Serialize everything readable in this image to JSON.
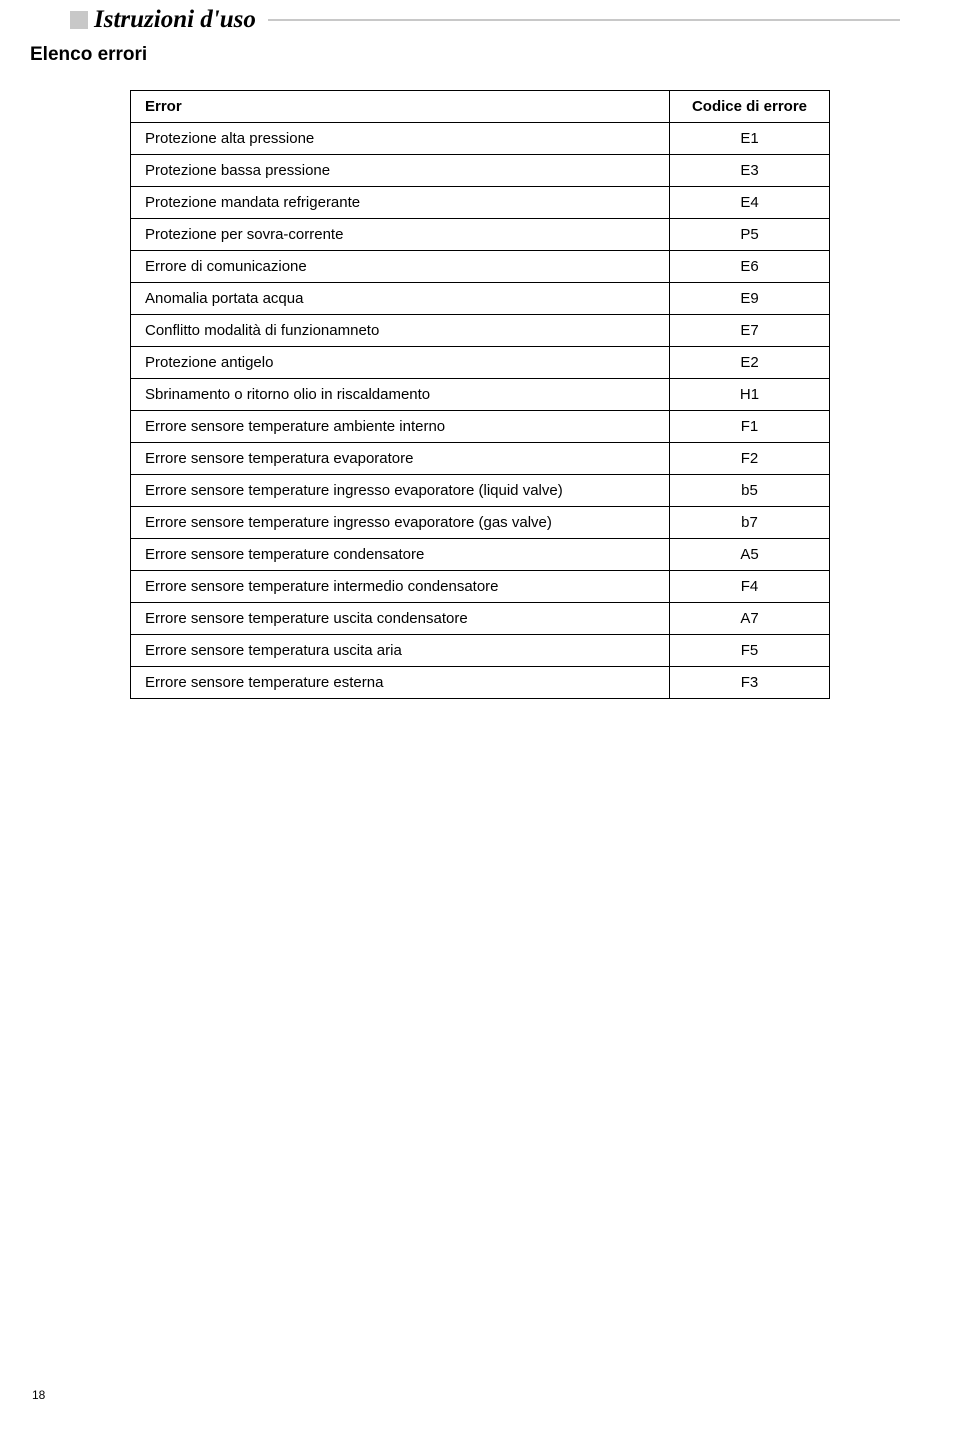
{
  "section_title": "Istruzioni d'uso",
  "sub_heading": "Elenco errori",
  "page_number": "18",
  "table": {
    "header": {
      "error": "Error",
      "code": "Codice di errore"
    },
    "rows": [
      {
        "error": "Protezione alta pressione",
        "code": "E1"
      },
      {
        "error": "Protezione bassa pressione",
        "code": "E3"
      },
      {
        "error": "Protezione  mandata refrigerante",
        "code": "E4"
      },
      {
        "error": "Protezione per sovra-corrente",
        "code": "P5"
      },
      {
        "error": "Errore di comunicazione",
        "code": "E6"
      },
      {
        "error": "Anomalia portata acqua",
        "code": "E9"
      },
      {
        "error": "Conflitto modalità di funzionamneto",
        "code": "E7"
      },
      {
        "error": "Protezione antigelo",
        "code": "E2"
      },
      {
        "error": "Sbrinamento o ritorno olio in riscaldamento",
        "code": "H1"
      },
      {
        "error": "Errore sensore temperature ambiente interno",
        "code": "F1"
      },
      {
        "error": "Errore sensore temperatura evaporatore",
        "code": "F2"
      },
      {
        "error": "Errore sensore temperature ingresso evaporatore  (liquid valve)",
        "code": "b5"
      },
      {
        "error": "Errore sensore temperature ingresso evaporatore  (gas valve)",
        "code": "b7"
      },
      {
        "error": "Errore  sensore temperature  condensatore",
        "code": "A5"
      },
      {
        "error": "Errore sensore temperature intermedio condensatore",
        "code": "F4"
      },
      {
        "error": "Errore sensore temperature uscita condensatore",
        "code": "A7"
      },
      {
        "error": "Errore sensore temperatura uscita aria",
        "code": "F5"
      },
      {
        "error": "Errore sensore temperature esterna",
        "code": "F3"
      }
    ]
  }
}
